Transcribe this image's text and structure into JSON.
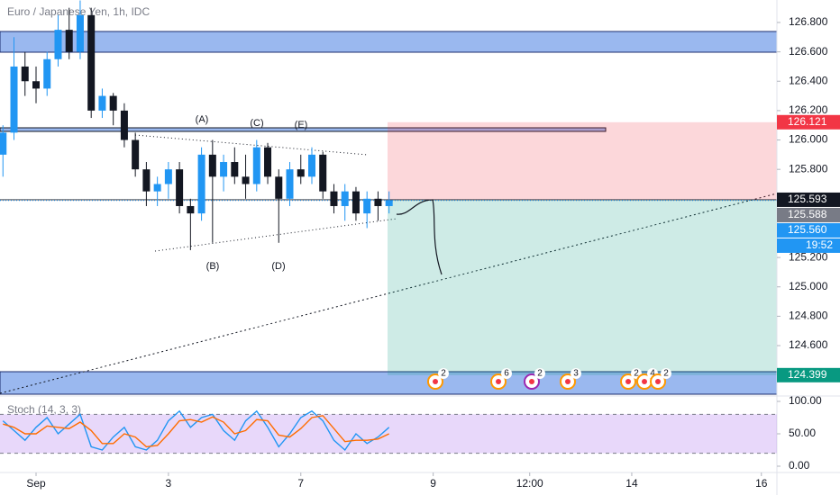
{
  "chart_data": [
    {
      "type": "candlestick",
      "title": "Euro / Japanese Yen, 1h, IDC",
      "x": [
        -12,
        -8,
        -4,
        0,
        4,
        8,
        12,
        16,
        20,
        24,
        28,
        32,
        36,
        40,
        44,
        48,
        52,
        56,
        60,
        64,
        68,
        72,
        76,
        80,
        84,
        88,
        92,
        96,
        100,
        104,
        108,
        112,
        116,
        120,
        124,
        128
      ],
      "open": [
        125.9,
        126.05,
        126.5,
        126.4,
        126.35,
        126.55,
        126.75,
        126.6,
        126.85,
        126.2,
        126.3,
        126.2,
        126.0,
        125.8,
        125.65,
        125.7,
        125.8,
        125.55,
        125.5,
        125.9,
        125.75,
        125.85,
        125.75,
        125.7,
        125.95,
        125.75,
        125.6,
        125.8,
        125.75,
        125.9,
        125.65,
        125.55,
        125.65,
        125.5,
        125.6,
        125.55
      ],
      "high": [
        126.1,
        126.7,
        126.6,
        126.5,
        126.6,
        126.85,
        126.9,
        126.95,
        126.9,
        126.35,
        126.32,
        126.25,
        126.05,
        125.85,
        125.75,
        125.85,
        125.85,
        125.6,
        125.95,
        126.0,
        125.9,
        125.95,
        125.9,
        126.0,
        125.98,
        125.8,
        125.85,
        125.9,
        125.95,
        125.92,
        125.7,
        125.7,
        125.68,
        125.65,
        125.65,
        125.65
      ],
      "low": [
        125.75,
        126.0,
        126.3,
        126.25,
        126.3,
        126.5,
        126.55,
        126.55,
        126.15,
        126.15,
        126.1,
        125.95,
        125.75,
        125.55,
        125.55,
        125.6,
        125.5,
        125.25,
        125.45,
        125.3,
        125.65,
        125.7,
        125.6,
        125.65,
        125.7,
        125.3,
        125.55,
        125.7,
        125.7,
        125.6,
        125.5,
        125.45,
        125.45,
        125.4,
        125.45,
        125.5
      ],
      "close": [
        126.05,
        126.5,
        126.4,
        126.35,
        126.55,
        126.75,
        126.6,
        126.85,
        126.2,
        126.3,
        126.2,
        126.0,
        125.8,
        125.65,
        125.7,
        125.8,
        125.55,
        125.5,
        125.9,
        125.75,
        125.85,
        125.75,
        125.7,
        125.95,
        125.75,
        125.6,
        125.8,
        125.75,
        125.9,
        125.65,
        125.55,
        125.65,
        125.5,
        125.6,
        125.55,
        125.59
      ],
      "up_color": "#2196f3",
      "down_color": "#131722",
      "ylim": [
        124.257,
        126.953
      ],
      "yticks": [
        {
          "value": 124.6,
          "label": "124.600"
        },
        {
          "value": 124.8,
          "label": "124.800"
        },
        {
          "value": 125,
          "label": "125.000"
        },
        {
          "value": 125.2,
          "label": "125.200"
        },
        {
          "value": 125.4,
          "label": "125.400"
        },
        {
          "value": 125.6,
          "label": "125.600"
        },
        {
          "value": 125.8,
          "label": "125.800"
        },
        {
          "value": 126,
          "label": "126.000"
        },
        {
          "value": 126.2,
          "label": "126.200"
        },
        {
          "value": 126.4,
          "label": "126.400"
        },
        {
          "value": 126.6,
          "label": "126.600"
        },
        {
          "value": 126.8,
          "label": "126.800"
        }
      ],
      "xlim": [
        -13.07,
        268.63
      ],
      "xticks": [
        {
          "value": 0,
          "label": "Sep"
        },
        {
          "value": 48,
          "label": "3"
        },
        {
          "value": 96,
          "label": "7"
        },
        {
          "value": 144,
          "label": "9"
        },
        {
          "value": 179,
          "label": "12:00"
        },
        {
          "value": 216,
          "label": "14"
        },
        {
          "value": 263,
          "label": "16"
        }
      ],
      "price_labels": [
        126.121,
        125.593,
        125.588,
        {
          "value": 125.56,
          "label": "125.560"
        },
        124.399
      ],
      "price_label_colors": [
        "#f23645",
        "#131722",
        "#787b86",
        "#2196f3",
        "#089981"
      ],
      "countdown": "19:52",
      "annotations": [
        "(A)",
        "(B)",
        "(C)",
        "(D)",
        "(E)"
      ],
      "events": [
        "2",
        "6",
        "2",
        "3",
        "2",
        "4",
        "2"
      ]
    },
    {
      "type": "line",
      "title": "Stoch (14, 3, 3)",
      "series": [
        {
          "color": "#2196f3",
          "values": [
            70,
            55,
            40,
            60,
            75,
            50,
            65,
            80,
            30,
            25,
            45,
            60,
            30,
            25,
            40,
            70,
            85,
            60,
            75,
            80,
            55,
            40,
            70,
            85,
            60,
            30,
            50,
            75,
            85,
            70,
            40,
            25,
            50,
            35,
            45,
            60
          ]
        },
        {
          "color": "#ff6d00",
          "values": [
            65,
            60,
            50,
            50,
            62,
            60,
            58,
            68,
            55,
            35,
            35,
            50,
            45,
            30,
            32,
            50,
            70,
            72,
            68,
            76,
            68,
            50,
            55,
            72,
            70,
            48,
            45,
            58,
            75,
            78,
            58,
            38,
            40,
            40,
            42,
            50
          ]
        }
      ],
      "ylim": [
        -9.7,
        108.3
      ],
      "yticks": [
        {
          "value": 0,
          "label": "0.00"
        },
        {
          "value": 50,
          "label": "50.00"
        },
        {
          "value": 100,
          "label": "100.00"
        }
      ],
      "band": [
        20,
        80
      ]
    }
  ]
}
